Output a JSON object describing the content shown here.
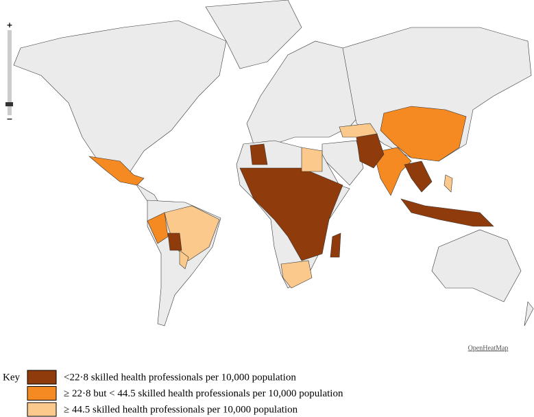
{
  "map": {
    "credit": "OpenHeatMap",
    "zoom": {
      "in": "+",
      "out": "−"
    }
  },
  "legend": {
    "title": "Key",
    "items": [
      {
        "label": "<22·8 skilled health professionals per 10,000 population",
        "color": "#8f3b0b"
      },
      {
        "label": "≥ 22·8 but < 44.5 skilled health professionals per 10,000 population",
        "color": "#f68a22"
      },
      {
        "label": "≥ 44.5 skilled health professionals per 10,000 population",
        "color": "#fbc98c"
      }
    ]
  }
}
